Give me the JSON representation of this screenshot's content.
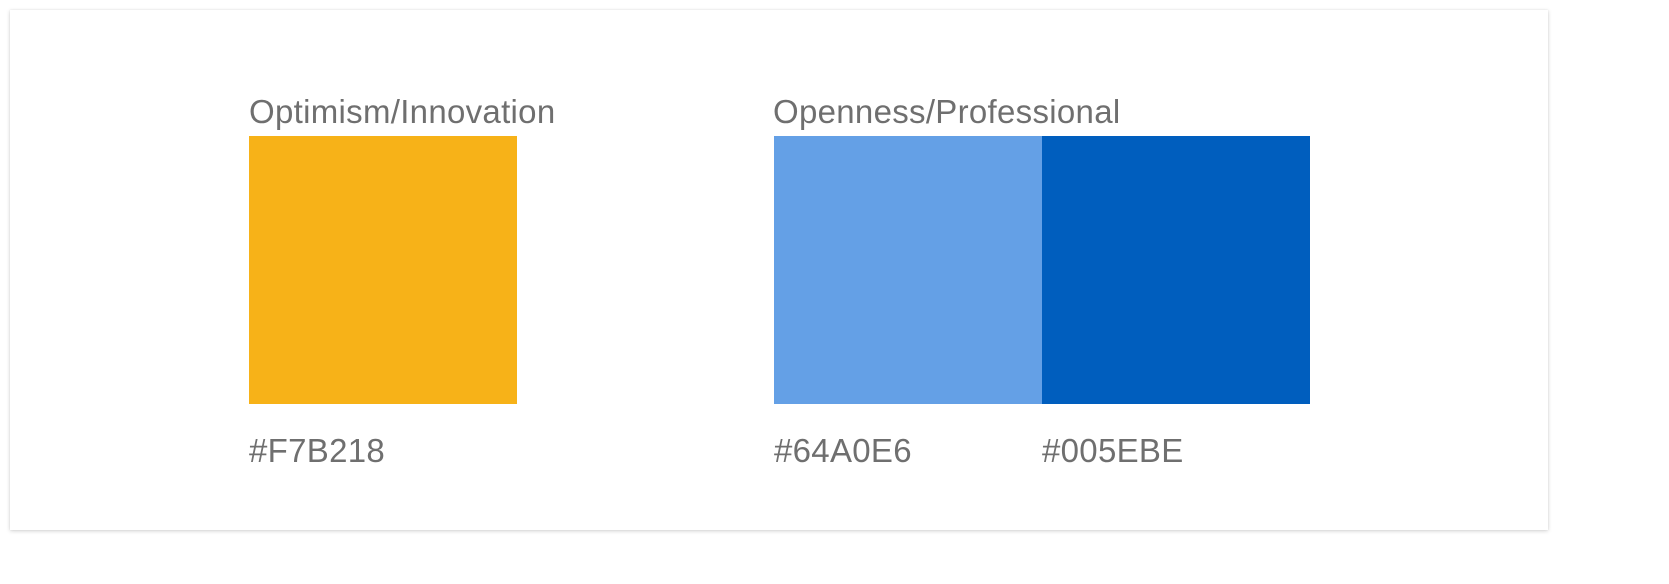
{
  "groups": [
    {
      "title": "Optimism/Innovation",
      "swatches": [
        {
          "hex": "#F7B218",
          "color": "#F7B218"
        }
      ]
    },
    {
      "title": "Openness/Professional",
      "swatches": [
        {
          "hex": "#64A0E6",
          "color": "#64A0E6"
        },
        {
          "hex": "#005EBE",
          "color": "#005EBE"
        }
      ]
    }
  ]
}
